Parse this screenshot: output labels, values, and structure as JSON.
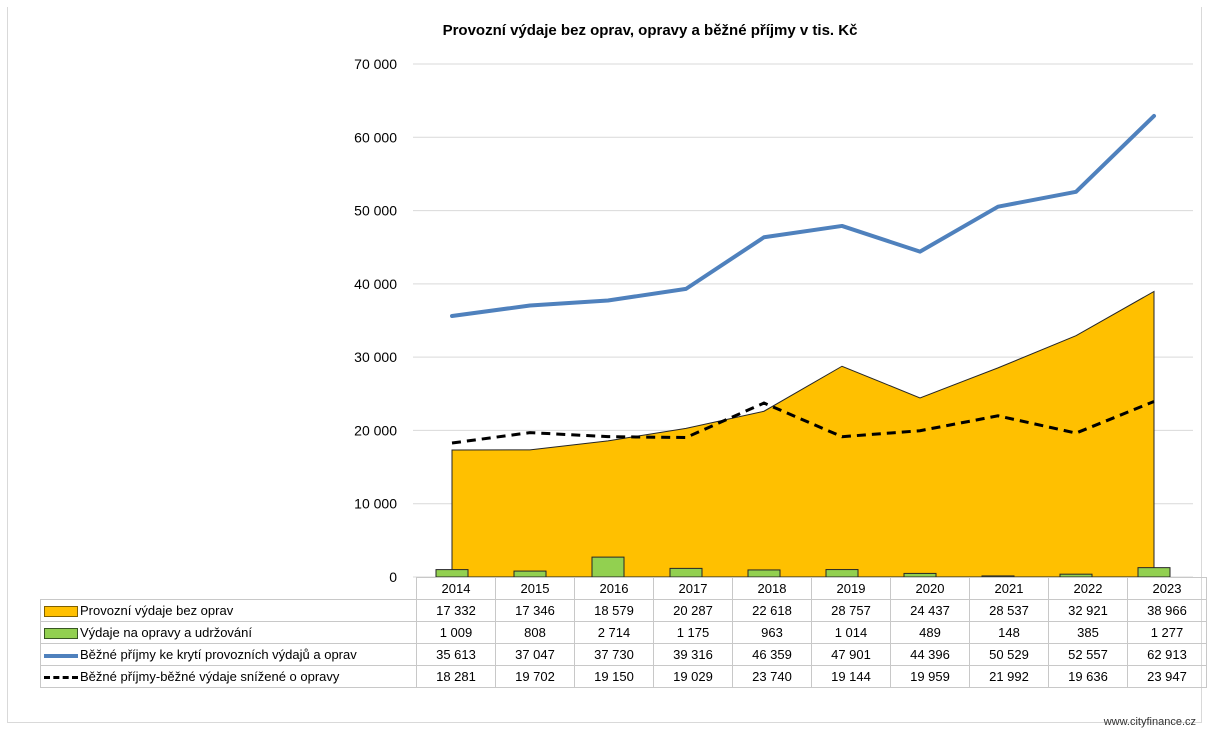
{
  "chart_data": {
    "type": "area",
    "title": "Provozní výdaje bez oprav, opravy a běžné příjmy v tis. Kč",
    "categories": [
      "2014",
      "2015",
      "2016",
      "2017",
      "2018",
      "2019",
      "2020",
      "2021",
      "2022",
      "2023"
    ],
    "ylim": [
      0,
      70000
    ],
    "yticks": [
      "0",
      "10 000",
      "20 000",
      "30 000",
      "40 000",
      "50 000",
      "60 000",
      "70 000"
    ],
    "grid": true,
    "legend_placement": "data table below chart",
    "series": [
      {
        "name": "Provozní výdaje bez oprav",
        "kind": "area",
        "color": "#ffc000",
        "values": [
          17332,
          17346,
          18579,
          20287,
          22618,
          28757,
          24437,
          28537,
          32921,
          38966
        ],
        "labels": [
          "17 332",
          "17 346",
          "18 579",
          "20 287",
          "22 618",
          "28 757",
          "24 437",
          "28 537",
          "32 921",
          "38 966"
        ]
      },
      {
        "name": "Výdaje na opravy a udržování",
        "kind": "bar",
        "color": "#92d050",
        "values": [
          1009,
          808,
          2714,
          1175,
          963,
          1014,
          489,
          148,
          385,
          1277
        ],
        "labels": [
          "1 009",
          "808",
          "2 714",
          "1 175",
          "963",
          "1 014",
          "489",
          "148",
          "385",
          "1 277"
        ]
      },
      {
        "name": "Běžné příjmy ke krytí provozních výdajů a oprav",
        "kind": "line",
        "color": "#4f81bd",
        "values": [
          35613,
          37047,
          37730,
          39316,
          46359,
          47901,
          44396,
          50529,
          52557,
          62913
        ],
        "labels": [
          "35 613",
          "37 047",
          "37 730",
          "39 316",
          "46 359",
          "47 901",
          "44 396",
          "50 529",
          "52 557",
          "62 913"
        ]
      },
      {
        "name": "Běžné příjmy-běžné výdaje snížené o opravy",
        "kind": "dashed-line",
        "color": "#000000",
        "values": [
          18281,
          19702,
          19150,
          19029,
          23740,
          19144,
          19959,
          21992,
          19636,
          23947
        ],
        "labels": [
          "18 281",
          "19 702",
          "19 150",
          "19 029",
          "23 740",
          "19 144",
          "19 959",
          "21 992",
          "19 636",
          "23 947"
        ]
      }
    ]
  },
  "source": "www.cityfinance.cz"
}
